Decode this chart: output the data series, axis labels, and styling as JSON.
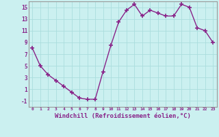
{
  "x": [
    0,
    1,
    2,
    3,
    4,
    5,
    6,
    7,
    8,
    9,
    10,
    11,
    12,
    13,
    14,
    15,
    16,
    17,
    18,
    19,
    20,
    21,
    22,
    23
  ],
  "y": [
    8,
    5,
    3.5,
    2.5,
    1.5,
    0.5,
    -0.5,
    -0.7,
    -0.7,
    4,
    8.5,
    12.5,
    14.5,
    15.5,
    13.5,
    14.5,
    14,
    13.5,
    13.5,
    15.5,
    15,
    11.5,
    11,
    9
  ],
  "line_color": "#882288",
  "marker": "+",
  "markersize": 4,
  "markeredgewidth": 1.2,
  "linewidth": 1,
  "background_color": "#cbf0f0",
  "grid_color": "#aadddd",
  "xlabel": "Windchill (Refroidissement éolien,°C)",
  "xlabel_fontsize": 6.5,
  "ytick_labels": [
    "-1",
    "1",
    "3",
    "5",
    "7",
    "9",
    "11",
    "13",
    "15"
  ],
  "ytick_values": [
    -1,
    1,
    3,
    5,
    7,
    9,
    11,
    13,
    15
  ],
  "xticks": [
    0,
    1,
    2,
    3,
    4,
    5,
    6,
    7,
    8,
    9,
    10,
    11,
    12,
    13,
    14,
    15,
    16,
    17,
    18,
    19,
    20,
    21,
    22,
    23
  ],
  "ylim": [
    -2,
    16
  ],
  "xlim": [
    -0.5,
    23.5
  ]
}
